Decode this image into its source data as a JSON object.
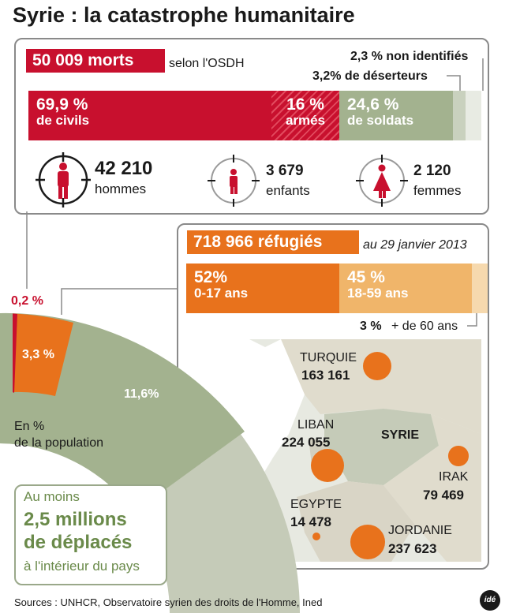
{
  "title": "Syrie : la catastrophe humanitaire",
  "deaths": {
    "total_label": "50 009 morts",
    "source_label": "selon l'OSDH",
    "unidentified_label": "2,3 % non identifiés",
    "deserters_label": "3,2% de déserteurs",
    "segments": [
      {
        "pct_label": "69,9 %",
        "label": "de civils",
        "value": 69.9,
        "color": "#c8102e"
      },
      {
        "pct_label": "16 %",
        "label": "armés",
        "value": 16,
        "color": "#c8102e"
      },
      {
        "pct_label": "24,6 %",
        "label": "de soldats",
        "value": 24.6,
        "color": "#a3b28f"
      },
      {
        "pct_label": "",
        "label": "",
        "value": 3.2,
        "color": "#c9d1be"
      },
      {
        "pct_label": "",
        "label": "",
        "value": 2.3,
        "color": "#e8ebe3"
      }
    ],
    "categories": [
      {
        "count": "42 210",
        "label": "hommes",
        "icon": "man-target-icon"
      },
      {
        "count": "3 679",
        "label": "enfants",
        "icon": "child-target-icon"
      },
      {
        "count": "2 120",
        "label": "femmes",
        "icon": "woman-target-icon"
      }
    ]
  },
  "refugees": {
    "total_label": "718 966 réfugiés",
    "date_label": "au 29 janvier 2013",
    "segments": [
      {
        "pct_label": "52%",
        "label": "0-17 ans",
        "value": 52,
        "color": "#e8721c"
      },
      {
        "pct_label": "45 %",
        "label": "18-59 ans",
        "value": 45,
        "color": "#f0b56a"
      },
      {
        "pct_label": "",
        "label": "",
        "value": 3,
        "color": "#f6d9ae"
      }
    ],
    "over60_pct": "3 %",
    "over60_label": "+ de 60 ans",
    "countries": [
      {
        "name": "TURQUIE",
        "value": "163 161",
        "count": 163161
      },
      {
        "name": "LIBAN",
        "value": "224 055",
        "count": 224055
      },
      {
        "name": "IRAK",
        "value": "79 469",
        "count": 79469
      },
      {
        "name": "EGYPTE",
        "value": "14 478",
        "count": 14478
      },
      {
        "name": "JORDANIE",
        "value": "237 623",
        "count": 237623
      }
    ],
    "map_country_label": "SYRIE"
  },
  "population": {
    "refugee_pct_label": "0,2 %",
    "displaced_pct_label": "3,3 %",
    "other_pct_label": "11,6%",
    "caption_line1": "En %",
    "caption_line2": "de la population"
  },
  "displaced": {
    "line1": "Au moins",
    "line2": "2,5 millions",
    "line3": "de déplacés",
    "line4": "à l'intérieur du pays"
  },
  "sources": "Sources : UNHCR, Observatoire syrien des droits de l'Homme, Ined",
  "logo_text": "idé",
  "chart_data": [
    {
      "type": "bar",
      "title": "50 009 morts",
      "categories": [
        "de civils",
        "armés",
        "de soldats",
        "de déserteurs",
        "non identifiés"
      ],
      "values": [
        69.9,
        16,
        24.6,
        3.2,
        2.3
      ]
    },
    {
      "type": "bar",
      "title": "718 966 réfugiés",
      "categories": [
        "0-17 ans",
        "18-59 ans",
        "+ de 60 ans"
      ],
      "values": [
        52,
        45,
        3
      ]
    },
    {
      "type": "scatter",
      "categories": [
        "TURQUIE",
        "LIBAN",
        "IRAK",
        "EGYPTE",
        "JORDANIE"
      ],
      "values": [
        163161,
        224055,
        79469,
        14478,
        237623
      ]
    },
    {
      "type": "pie",
      "categories": [
        "réfugiés",
        "déplacés",
        "autres"
      ],
      "values": [
        0.2,
        3.3,
        11.6
      ]
    }
  ]
}
